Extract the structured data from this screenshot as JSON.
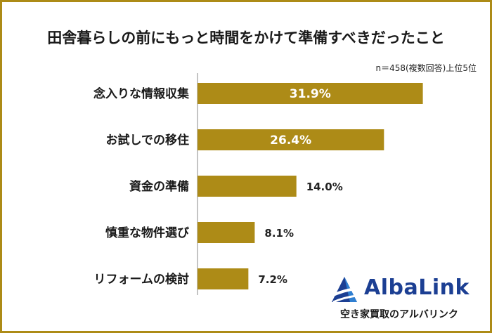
{
  "title": "田舎暮らしの前にもっと時間をかけて準備すべきだったこと",
  "note": "n＝458(複数回答)上位5位",
  "brand": {
    "name": "AlbaLink",
    "tagline": "空き家買取のアルバリンク",
    "primary_color": "#1c3f93",
    "accent_color": "#2f7fd1"
  },
  "colors": {
    "bar": "#ad8b17",
    "frame": "#ad8b17",
    "text": "#1a1a1a"
  },
  "chart_data": {
    "type": "bar",
    "orientation": "horizontal",
    "categories": [
      "念入りな情報収集",
      "お試しでの移住",
      "資金の準備",
      "慎重な物件選び",
      "リフォームの検討"
    ],
    "values": [
      31.9,
      26.4,
      14.0,
      8.1,
      7.2
    ],
    "value_labels": [
      "31.9%",
      "26.4%",
      "14.0%",
      "8.1%",
      "7.2%"
    ],
    "unit": "%",
    "title": "田舎暮らしの前にもっと時間をかけて準備すべきだったこと",
    "xlabel": "",
    "ylabel": "",
    "xlim": [
      0,
      36
    ],
    "grid": false,
    "legend": "none"
  }
}
